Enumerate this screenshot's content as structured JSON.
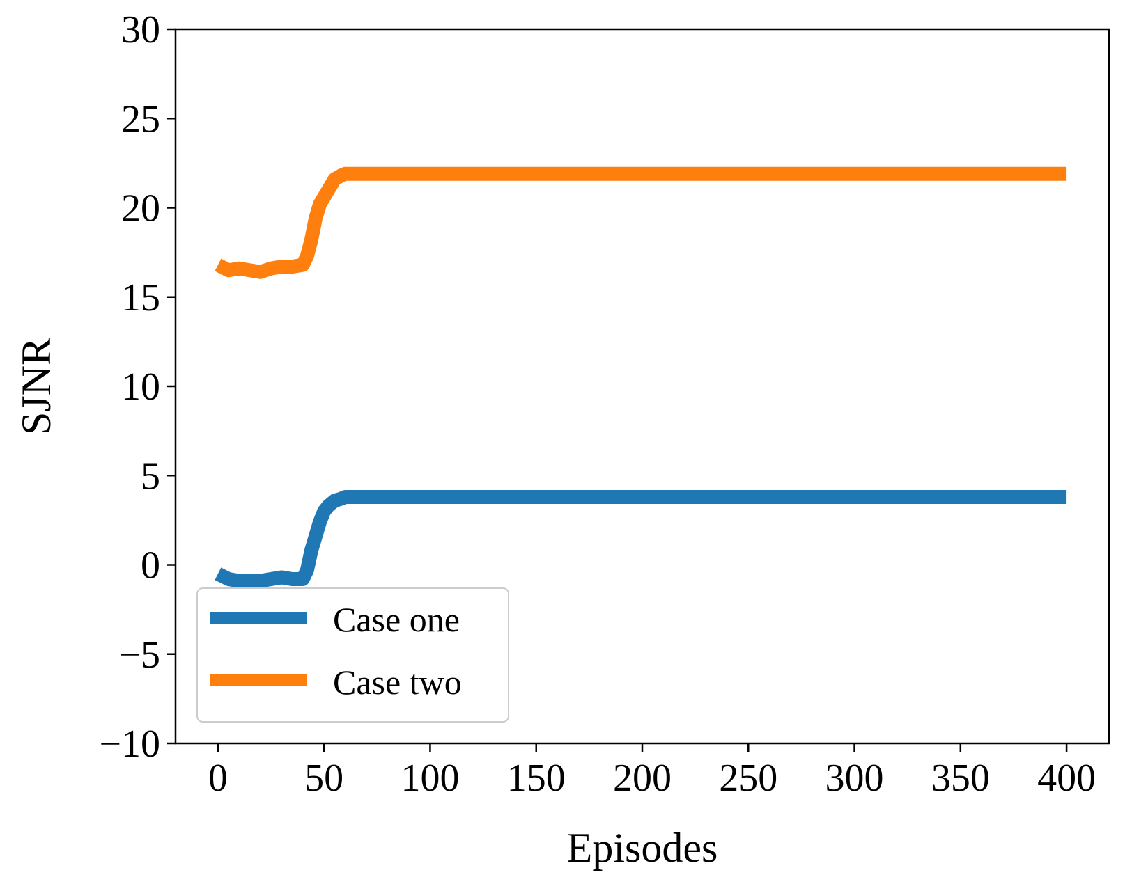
{
  "chart_data": {
    "type": "line",
    "title": "",
    "xlabel": "Episodes",
    "ylabel": "SJNR",
    "xlim": [
      -20,
      420
    ],
    "ylim": [
      -10,
      30
    ],
    "xticks": [
      0,
      50,
      100,
      150,
      200,
      250,
      300,
      350,
      400
    ],
    "yticks": [
      -10,
      -5,
      0,
      5,
      10,
      15,
      20,
      25,
      30
    ],
    "xtick_labels": [
      "0",
      "50",
      "100",
      "150",
      "200",
      "250",
      "300",
      "350",
      "400"
    ],
    "ytick_labels": [
      "−10",
      "−5",
      "0",
      "5",
      "10",
      "15",
      "20",
      "25",
      "30"
    ],
    "grid": false,
    "legend_position": "lower-left",
    "series": [
      {
        "name": "Case one",
        "color": "#1f77b4",
        "x": [
          0,
          5,
          10,
          15,
          20,
          25,
          30,
          35,
          40,
          42,
          44,
          46,
          48,
          50,
          52,
          55,
          58,
          60,
          65,
          70,
          80,
          100,
          150,
          200,
          250,
          300,
          350,
          400
        ],
        "y": [
          -0.5,
          -0.8,
          -0.9,
          -0.9,
          -0.9,
          -0.8,
          -0.7,
          -0.8,
          -0.8,
          -0.3,
          0.8,
          1.6,
          2.4,
          3.0,
          3.3,
          3.6,
          3.7,
          3.8,
          3.8,
          3.8,
          3.8,
          3.8,
          3.8,
          3.8,
          3.8,
          3.8,
          3.8,
          3.8
        ]
      },
      {
        "name": "Case two",
        "color": "#ff7f0e",
        "x": [
          0,
          5,
          10,
          15,
          20,
          25,
          30,
          35,
          40,
          42,
          44,
          46,
          48,
          50,
          52,
          55,
          58,
          60,
          65,
          70,
          80,
          100,
          150,
          200,
          250,
          300,
          350,
          400
        ],
        "y": [
          16.8,
          16.5,
          16.6,
          16.5,
          16.4,
          16.6,
          16.7,
          16.7,
          16.8,
          17.3,
          18.2,
          19.4,
          20.2,
          20.6,
          21.0,
          21.6,
          21.8,
          21.9,
          21.9,
          21.9,
          21.9,
          21.9,
          21.9,
          21.9,
          21.9,
          21.9,
          21.9,
          21.9
        ]
      }
    ]
  }
}
